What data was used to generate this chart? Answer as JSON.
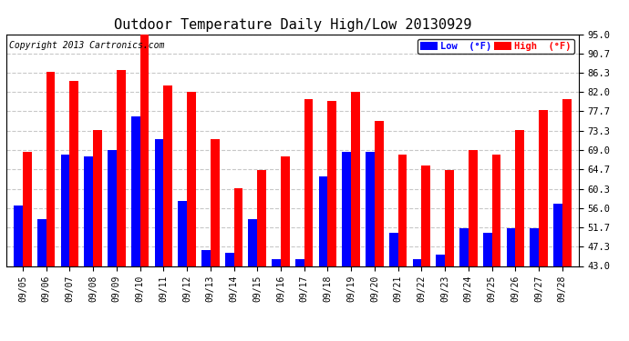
{
  "title": "Outdoor Temperature Daily High/Low 20130929",
  "copyright": "Copyright 2013 Cartronics.com",
  "legend_low": "Low  (°F)",
  "legend_high": "High  (°F)",
  "dates": [
    "09/05",
    "09/06",
    "09/07",
    "09/08",
    "09/09",
    "09/10",
    "09/11",
    "09/12",
    "09/13",
    "09/14",
    "09/15",
    "09/16",
    "09/17",
    "09/18",
    "09/19",
    "09/20",
    "09/21",
    "09/22",
    "09/23",
    "09/24",
    "09/25",
    "09/26",
    "09/27",
    "09/28"
  ],
  "high": [
    68.5,
    86.5,
    84.5,
    73.5,
    87.0,
    95.5,
    83.5,
    82.0,
    71.5,
    60.5,
    64.5,
    67.5,
    80.5,
    80.0,
    82.0,
    75.5,
    68.0,
    65.5,
    64.5,
    69.0,
    68.0,
    73.5,
    78.0,
    80.5
  ],
  "low": [
    56.5,
    53.5,
    68.0,
    67.5,
    69.0,
    76.5,
    71.5,
    57.5,
    46.5,
    46.0,
    53.5,
    44.5,
    44.5,
    63.0,
    68.5,
    68.5,
    50.5,
    44.5,
    45.5,
    51.5,
    50.5,
    51.5,
    51.5,
    57.0
  ],
  "ylim_min": 43.0,
  "ylim_max": 95.0,
  "yticks": [
    43.0,
    47.3,
    51.7,
    56.0,
    60.3,
    64.7,
    69.0,
    73.3,
    77.7,
    82.0,
    86.3,
    90.7,
    95.0
  ],
  "high_color": "#ff0000",
  "low_color": "#0000ff",
  "bg_color": "#ffffff",
  "grid_color": "#c8c8c8",
  "title_fontsize": 11,
  "copyright_fontsize": 7,
  "bar_width": 0.38
}
